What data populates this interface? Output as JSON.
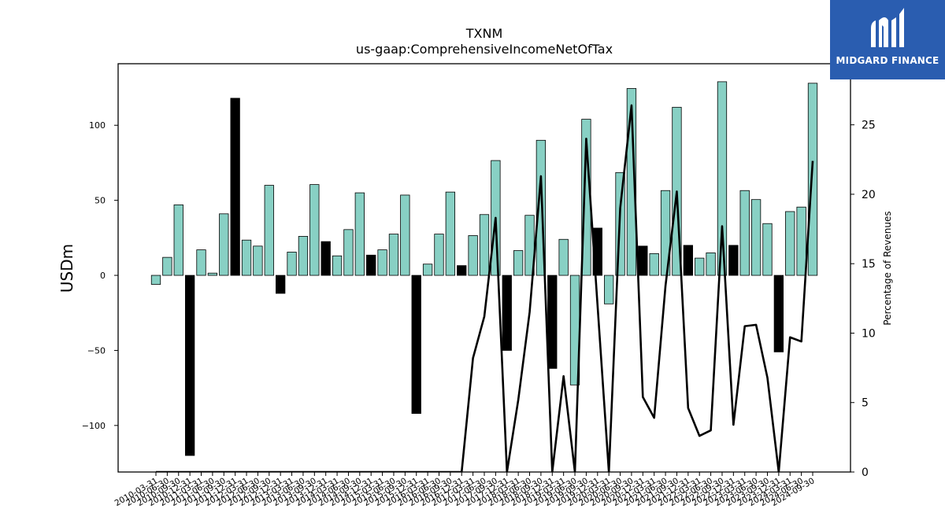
{
  "chart_data": {
    "type": "bar",
    "title": "TXNM",
    "subtitle": "us-gaap:ComprehensiveIncomeNetOfTax",
    "ylabel": "USDm",
    "y2label": "Percentage of Revenues",
    "ylim": [
      -131,
      141
    ],
    "y2lim": [
      0,
      29.4
    ],
    "yticks": [
      -100,
      -50,
      0,
      50,
      100
    ],
    "y2ticks": [
      0,
      5,
      10,
      15,
      20,
      25
    ],
    "legend": "none",
    "grid": false,
    "colors": {
      "annual_bar": "#000000",
      "quarter_bar": "#88d0c4",
      "line": "#000000"
    },
    "categories": [
      "2010-03-31",
      "2010-06-30",
      "2010-09-30",
      "2010-12-31",
      "2011-03-31",
      "2011-06-30",
      "2011-09-30",
      "2011-12-31",
      "2012-03-31",
      "2012-06-30",
      "2012-09-30",
      "2012-12-31",
      "2013-03-31",
      "2013-06-30",
      "2013-09-30",
      "2013-12-31",
      "2014-03-31",
      "2014-06-30",
      "2014-09-30",
      "2014-12-31",
      "2015-03-31",
      "2015-06-30",
      "2015-09-30",
      "2015-12-31",
      "2016-03-31",
      "2016-06-30",
      "2016-09-30",
      "2016-12-31",
      "2017-03-31",
      "2017-06-30",
      "2017-09-30",
      "2017-12-31",
      "2018-03-31",
      "2018-06-30",
      "2018-09-30",
      "2018-12-31",
      "2019-03-31",
      "2019-06-30",
      "2019-09-30",
      "2019-12-31",
      "2020-03-31",
      "2020-06-30",
      "2020-09-30",
      "2020-12-31",
      "2021-03-31",
      "2021-06-30",
      "2021-09-30",
      "2021-12-31",
      "2022-03-31",
      "2022-06-30",
      "2022-09-30",
      "2022-12-31",
      "2023-03-31",
      "2023-06-30",
      "2023-09-30",
      "2023-12-31",
      "2024-03-31",
      "2024-06-30",
      "2024-09-30"
    ],
    "series": [
      {
        "kind": "bar",
        "axis": "left",
        "values": [
          -6,
          12,
          47,
          -120,
          17,
          1.5,
          41,
          118,
          23.5,
          19.5,
          60,
          -12,
          15.5,
          26,
          60.5,
          22.5,
          13,
          30.5,
          55,
          13.5,
          17,
          27.5,
          53.5,
          -92,
          7.5,
          27.5,
          55.5,
          6.5,
          26.5,
          40.5,
          76.5,
          -50,
          16.5,
          40,
          90,
          -62,
          24,
          -73,
          104,
          31.5,
          -19,
          68.5,
          124.5,
          19.5,
          14.5,
          56.5,
          112,
          20,
          11.5,
          15,
          129,
          20,
          56.5,
          50.5,
          34.5,
          -51,
          42.5,
          45.5,
          128
        ],
        "annual": [
          false,
          false,
          false,
          true,
          false,
          false,
          false,
          true,
          false,
          false,
          false,
          true,
          false,
          false,
          false,
          true,
          false,
          false,
          false,
          true,
          false,
          false,
          false,
          true,
          false,
          false,
          false,
          true,
          false,
          false,
          false,
          true,
          false,
          false,
          false,
          true,
          false,
          false,
          false,
          true,
          false,
          false,
          false,
          true,
          false,
          false,
          false,
          true,
          false,
          false,
          false,
          true,
          false,
          false,
          false,
          true,
          false,
          false,
          false
        ]
      },
      {
        "kind": "line",
        "axis": "right",
        "values": [
          0,
          0,
          0,
          0,
          0,
          0,
          0,
          0,
          0,
          0,
          0,
          0,
          0,
          0,
          0,
          0,
          0,
          0,
          0,
          0,
          0,
          0,
          0,
          0,
          0,
          0,
          0,
          0,
          8.2,
          11.2,
          18.3,
          0,
          5.2,
          11.5,
          21.3,
          0,
          6.9,
          0,
          24,
          12,
          0,
          19,
          26.4,
          5.4,
          3.9,
          13.4,
          20.2,
          4.6,
          2.6,
          3,
          17.7,
          3.4,
          10.5,
          10.6,
          6.8,
          0,
          9.7,
          9.4,
          22.4
        ]
      }
    ]
  },
  "branding": {
    "logo_text": "MIDGARD FINANCE",
    "logo_icon": "midgard-logo-icon"
  }
}
